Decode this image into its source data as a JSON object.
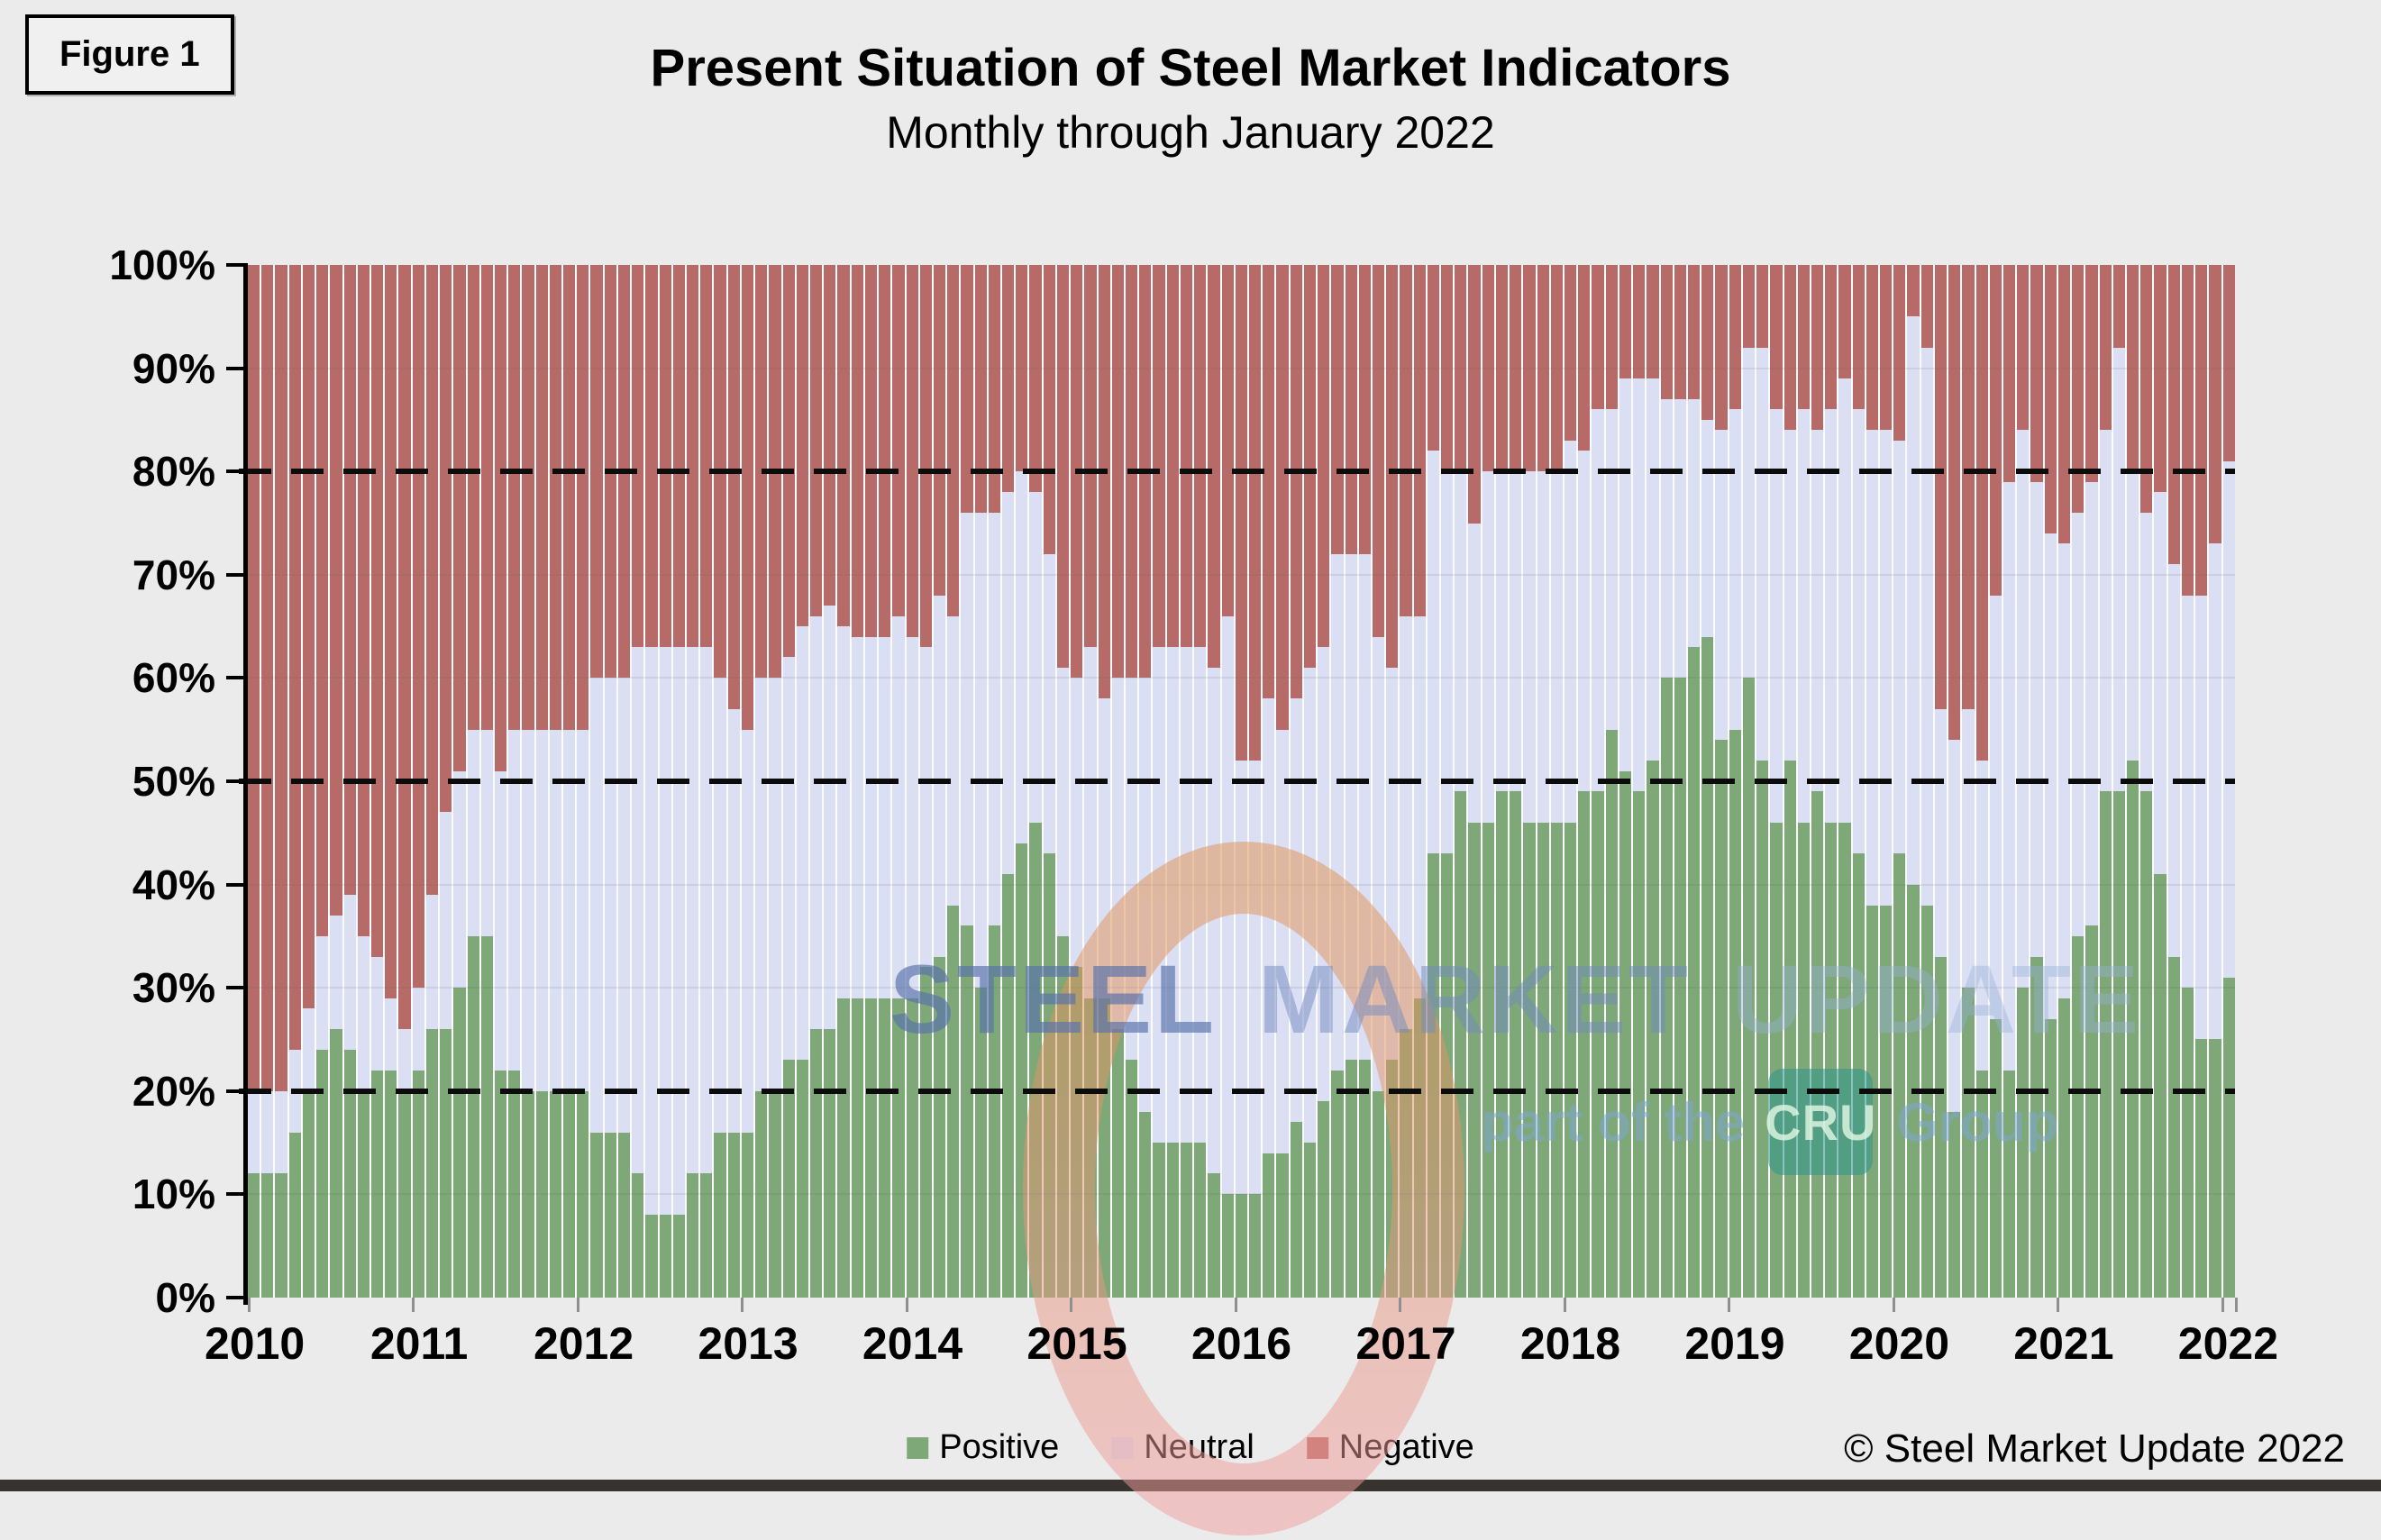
{
  "figure_label": "Figure 1",
  "title": "Present Situation of Steel Market Indicators",
  "subtitle": "Monthly through January 2022",
  "copyright": "© Steel Market Update 2022",
  "legend": {
    "items": [
      {
        "label": "Positive",
        "color": "#7ea878"
      },
      {
        "label": "Neutral",
        "color": "#dbdff4"
      },
      {
        "label": "Negative",
        "color": "#b76b69"
      }
    ]
  },
  "watermark": {
    "steel": "STEEL",
    "market": "MARKET",
    "update": "UPDATE",
    "part_of_the": "part of the",
    "cru": "CRU",
    "group": "Group"
  },
  "colors": {
    "positive": "#7ea878",
    "neutral": "#dbdff4",
    "negative": "#b76b69",
    "background": "#ebebeb",
    "ring_top": "#e0914f",
    "ring_bottom": "#ef9d9d"
  },
  "chart_data": {
    "type": "bar",
    "stacked": true,
    "unit": "percent of indicators",
    "period_start": "January 2010",
    "period_end": "January 2022",
    "months_per_bar": 1,
    "bar_count": 145,
    "ylim": [
      0,
      100
    ],
    "grid": "faint horizontal every 10%",
    "reference_lines_dashed": [
      20,
      50,
      80
    ],
    "legend_position": "bottom-center",
    "y_tick_labels": [
      "0%",
      "10%",
      "20%",
      "30%",
      "40%",
      "50%",
      "60%",
      "70%",
      "80%",
      "90%",
      "100%"
    ],
    "x_tick_labels": [
      "2010",
      "2011",
      "2012",
      "2013",
      "2014",
      "2015",
      "2016",
      "2017",
      "2018",
      "2019",
      "2020",
      "2021",
      "2022"
    ],
    "series": [
      {
        "name": "Positive",
        "values": [
          12,
          12,
          12,
          16,
          20,
          24,
          26,
          24,
          20,
          22,
          22,
          20,
          22,
          26,
          26,
          30,
          35,
          35,
          22,
          22,
          20,
          20,
          20,
          20,
          20,
          16,
          16,
          16,
          12,
          8,
          8,
          8,
          12,
          12,
          16,
          16,
          16,
          20,
          20,
          23,
          23,
          26,
          26,
          29,
          29,
          29,
          29,
          29,
          29,
          32,
          33,
          38,
          36,
          30,
          36,
          41,
          44,
          46,
          43,
          35,
          32,
          29,
          29,
          26,
          23,
          18,
          15,
          15,
          15,
          15,
          12,
          10,
          10,
          10,
          14,
          14,
          17,
          15,
          19,
          22,
          23,
          23,
          20,
          23,
          26,
          29,
          43,
          43,
          49,
          46,
          46,
          49,
          49,
          46,
          46,
          46,
          46,
          49,
          49,
          55,
          51,
          49,
          52,
          60,
          60,
          63,
          64,
          54,
          55,
          60,
          52,
          46,
          52,
          46,
          49,
          46,
          46,
          43,
          38,
          38,
          43,
          40,
          38,
          33,
          18,
          30,
          22,
          27,
          22,
          30,
          33,
          27,
          29,
          35,
          36,
          49,
          49,
          52,
          49,
          41,
          33,
          30,
          25,
          25,
          31
        ]
      },
      {
        "name": "Neutral",
        "values": [
          8,
          8,
          8,
          8,
          8,
          11,
          11,
          15,
          15,
          11,
          7,
          6,
          8,
          13,
          21,
          21,
          20,
          20,
          29,
          33,
          35,
          35,
          35,
          35,
          35,
          44,
          44,
          44,
          51,
          55,
          55,
          55,
          51,
          51,
          44,
          41,
          39,
          40,
          40,
          39,
          42,
          40,
          41,
          36,
          35,
          35,
          35,
          37,
          35,
          31,
          35,
          28,
          40,
          46,
          40,
          37,
          36,
          32,
          29,
          26,
          28,
          34,
          29,
          34,
          37,
          42,
          48,
          48,
          48,
          48,
          49,
          56,
          42,
          42,
          44,
          41,
          41,
          46,
          44,
          50,
          49,
          49,
          44,
          38,
          40,
          37,
          39,
          37,
          31,
          29,
          34,
          31,
          31,
          34,
          34,
          34,
          37,
          33,
          37,
          31,
          38,
          40,
          37,
          27,
          27,
          24,
          21,
          30,
          31,
          32,
          40,
          40,
          32,
          40,
          35,
          40,
          43,
          43,
          46,
          46,
          40,
          55,
          54,
          24,
          36,
          27,
          30,
          41,
          57,
          54,
          46,
          47,
          44,
          41,
          43,
          35,
          43,
          28,
          27,
          37,
          38,
          38,
          43,
          48,
          50
        ]
      },
      {
        "name": "Negative",
        "values": [
          80,
          80,
          80,
          76,
          72,
          65,
          63,
          61,
          65,
          67,
          71,
          74,
          70,
          61,
          53,
          49,
          45,
          45,
          49,
          45,
          45,
          45,
          45,
          45,
          45,
          40,
          40,
          40,
          37,
          37,
          37,
          37,
          37,
          37,
          40,
          43,
          45,
          40,
          40,
          38,
          35,
          34,
          33,
          35,
          36,
          36,
          36,
          34,
          36,
          37,
          32,
          34,
          24,
          24,
          24,
          22,
          20,
          22,
          28,
          39,
          40,
          37,
          42,
          40,
          40,
          40,
          37,
          37,
          37,
          37,
          39,
          34,
          48,
          48,
          42,
          45,
          42,
          39,
          37,
          28,
          28,
          28,
          36,
          39,
          34,
          34,
          18,
          20,
          20,
          25,
          20,
          20,
          20,
          20,
          20,
          20,
          17,
          18,
          14,
          14,
          11,
          11,
          11,
          13,
          13,
          13,
          15,
          16,
          14,
          8,
          8,
          14,
          16,
          14,
          16,
          14,
          11,
          14,
          16,
          16,
          17,
          5,
          8,
          43,
          46,
          43,
          48,
          32,
          21,
          16,
          21,
          26,
          27,
          24,
          21,
          16,
          8,
          20,
          24,
          22,
          29,
          32,
          32,
          27,
          19
        ]
      }
    ]
  }
}
